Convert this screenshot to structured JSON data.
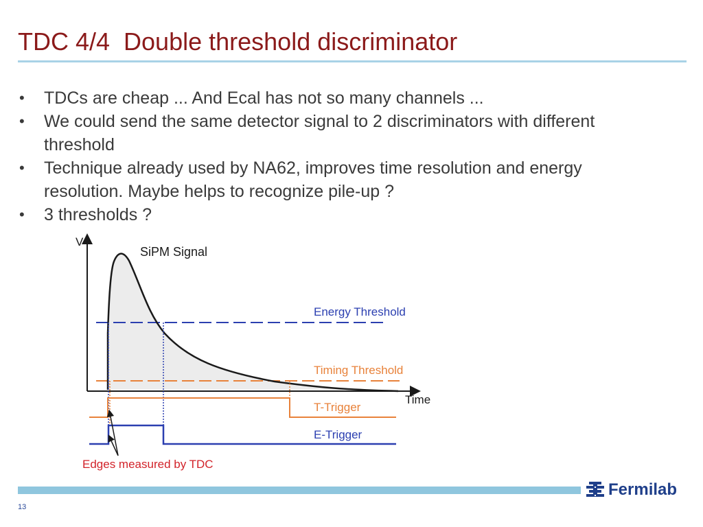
{
  "slide": {
    "title": "TDC 4/4  Double threshold discriminator",
    "bullets": [
      "TDCs are cheap ... And Ecal has not so many channels ...",
      "We could send the same detector signal to 2 discriminators with different threshold",
      "Technique already used by NA62, improves time resolution and energy resolution. Maybe helps to recognize pile-up ?",
      "3 thresholds ?"
    ],
    "bullet_glyph": "•",
    "page_number": "13"
  },
  "diagram": {
    "axis_y_label": "V",
    "axis_x_label": "Time",
    "signal_label": "SiPM Signal",
    "energy_threshold_label": "Energy Threshold",
    "timing_threshold_label": "Timing Threshold",
    "t_trigger_label": "T-Trigger",
    "e_trigger_label": "E-Trigger",
    "edges_label": "Edges measured by TDC",
    "colors": {
      "energy": "#2b3fb0",
      "timing": "#e8823a",
      "edges": "#d2232a",
      "signal": "#1a1a1a"
    }
  },
  "footer": {
    "logo_text": "Fermilab",
    "logo_icon": "fermilab-logo-icon"
  }
}
